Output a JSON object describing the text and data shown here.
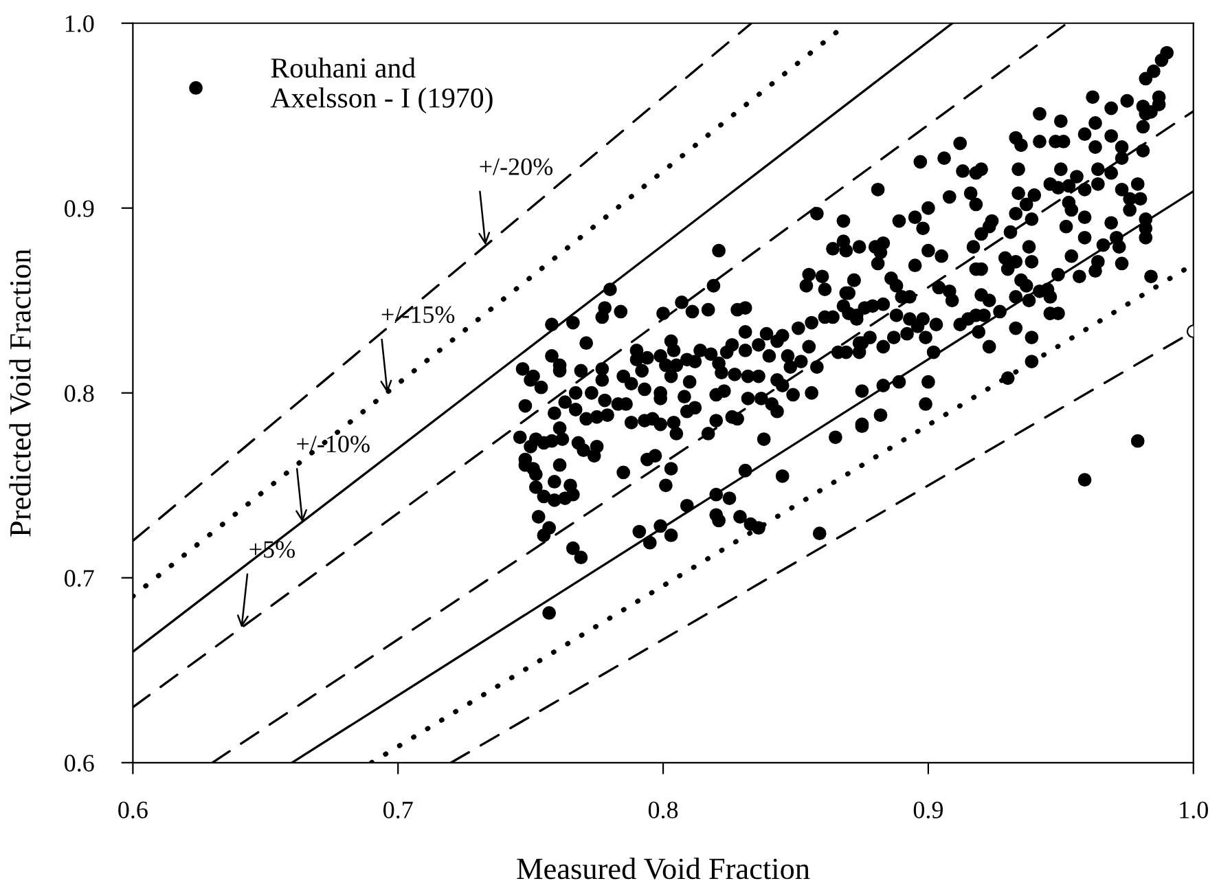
{
  "chart_data": {
    "type": "scatter",
    "xlabel": "Measured Void Fraction",
    "ylabel": "Predicted Void Fraction",
    "xlim": [
      0.6,
      1.0
    ],
    "ylim": [
      0.6,
      1.0
    ],
    "xticks": [
      0.6,
      0.7,
      0.8,
      0.9,
      {
        "value": 1.0,
        "label": "1.0"
      }
    ],
    "yticks": [
      0.6,
      0.7,
      0.8,
      0.9,
      {
        "value": 1.0,
        "label": "1.0"
      }
    ],
    "grid": false,
    "legend": "top left",
    "marker": "circle",
    "annotations": [
      {
        "text": "+/-20%",
        "x": 0.733,
        "y": 0.88
      },
      {
        "text": "+/-15%",
        "x": 0.696,
        "y": 0.8
      },
      {
        "text": "+/-10%",
        "x": 0.664,
        "y": 0.73
      },
      {
        "text": "+5%",
        "x": 0.641,
        "y": 0.673
      }
    ],
    "series": [
      {
        "type": "line",
        "color": "#000000",
        "line_style": "dashed",
        "marker": "none",
        "x": [
          0.6,
          0.8333
        ],
        "values": [
          0.72,
          1.0
        ]
      },
      {
        "type": "line",
        "color": "#000000",
        "line_style": "dotted",
        "marker": "none",
        "x": [
          0.6,
          0.8696
        ],
        "values": [
          0.69,
          1.0
        ]
      },
      {
        "type": "line",
        "color": "#000000",
        "line_style": "solid",
        "marker": "none",
        "x": [
          0.6,
          0.9091
        ],
        "values": [
          0.66,
          1.0
        ]
      },
      {
        "type": "line",
        "color": "#000000",
        "line_style": "dashed",
        "marker": "none",
        "x": [
          0.6,
          0.9524
        ],
        "values": [
          0.63,
          1.0
        ]
      },
      {
        "type": "line",
        "color": "#000000",
        "line_style": "dashed",
        "marker": "none",
        "x": [
          0.63,
          1.0
        ],
        "values": [
          0.6,
          0.9524
        ]
      },
      {
        "type": "line",
        "color": "#000000",
        "line_style": "solid",
        "marker": "none",
        "x": [
          0.66,
          1.0
        ],
        "values": [
          0.6,
          0.9091
        ]
      },
      {
        "type": "line",
        "color": "#000000",
        "line_style": "dotted",
        "marker": "none",
        "x": [
          0.69,
          1.0
        ],
        "values": [
          0.6,
          0.8696
        ]
      },
      {
        "type": "line",
        "color": "#000000",
        "line_style": "dashed",
        "marker": "none",
        "x": [
          0.72,
          1.0
        ],
        "values": [
          0.6,
          0.8333
        ]
      },
      {
        "color": "#ffffff",
        "x": [
          1.0
        ],
        "values": [
          0.8333
        ]
      },
      {
        "name": "Rouhani and\nAxelsson - I (1970)",
        "color": "#000000",
        "x": [
          0.821,
          0.78,
          0.778,
          0.777,
          0.784,
          0.758,
          0.766,
          0.771,
          0.758,
          0.761,
          0.761,
          0.751,
          0.754,
          0.769,
          0.777,
          0.777,
          0.785,
          0.79,
          0.79,
          0.794,
          0.792,
          0.793,
          0.788,
          0.799,
          0.801,
          0.805,
          0.803,
          0.803,
          0.804,
          0.799,
          0.799,
          0.8,
          0.807,
          0.811,
          0.817,
          0.819,
          0.828,
          0.831,
          0.809,
          0.812,
          0.81,
          0.814,
          0.808,
          0.809,
          0.812,
          0.818,
          0.821,
          0.822,
          0.824,
          0.826,
          0.827,
          0.82,
          0.823,
          0.831,
          0.831,
          0.836,
          0.839,
          0.843,
          0.845,
          0.851,
          0.856,
          0.861,
          0.864,
          0.832,
          0.836,
          0.832,
          0.837,
          0.84,
          0.847,
          0.848,
          0.852,
          0.855,
          0.858,
          0.843,
          0.845,
          0.849,
          0.856,
          0.841,
          0.843,
          0.838,
          0.831,
          0.845,
          0.82,
          0.825,
          0.801,
          0.803,
          0.794,
          0.797,
          0.785,
          0.817,
          0.82,
          0.826,
          0.828,
          0.804,
          0.805,
          0.788,
          0.793,
          0.796,
          0.799,
          0.767,
          0.771,
          0.775,
          0.779,
          0.783,
          0.786,
          0.763,
          0.767,
          0.773,
          0.778,
          0.759,
          0.761,
          0.762,
          0.758,
          0.752,
          0.75,
          0.755,
          0.768,
          0.77,
          0.775,
          0.774,
          0.761,
          0.751,
          0.752,
          0.759,
          0.765,
          0.755,
          0.759,
          0.763,
          0.766,
          0.865,
          0.875,
          0.875,
          0.875,
          0.87,
          0.873,
          0.869,
          0.861,
          0.86,
          0.855,
          0.854,
          0.872,
          0.864,
          0.869,
          0.99,
          0.988,
          0.985,
          0.982,
          0.962,
          0.969,
          0.975,
          0.981,
          0.982,
          0.987,
          0.987,
          0.984,
          0.942,
          0.95,
          0.963,
          0.959,
          0.969,
          0.963,
          0.973,
          0.981,
          0.981,
          0.933,
          0.935,
          0.942,
          0.948,
          0.951,
          0.912,
          0.897,
          0.906,
          0.913,
          0.918,
          0.92,
          0.934,
          0.95,
          0.956,
          0.964,
          0.969,
          0.973,
          0.881,
          0.908,
          0.916,
          0.934,
          0.94,
          0.937,
          0.946,
          0.949,
          0.953,
          0.959,
          0.964,
          0.973,
          0.979,
          0.976,
          0.98,
          0.976,
          0.953,
          0.954,
          0.959,
          0.9,
          0.895,
          0.889,
          0.898,
          0.868,
          0.918,
          0.924,
          0.923,
          0.92,
          0.933,
          0.931,
          0.939,
          0.952,
          0.959,
          0.969,
          0.971,
          0.982,
          0.982,
          0.982,
          0.868,
          0.874,
          0.88,
          0.883,
          0.882,
          0.881,
          0.895,
          0.9,
          0.905,
          0.917,
          0.918,
          0.92,
          0.929,
          0.93,
          0.933,
          0.938,
          0.939,
          0.935,
          0.937,
          0.949,
          0.954,
          0.957,
          0.963,
          0.964,
          0.966,
          0.972,
          0.973,
          0.984,
          0.872,
          0.87,
          0.868,
          0.873,
          0.876,
          0.879,
          0.883,
          0.886,
          0.888,
          0.89,
          0.893,
          0.888,
          0.893,
          0.896,
          0.898,
          0.899,
          0.903,
          0.902,
          0.866,
          0.869,
          0.874,
          0.874,
          0.878,
          0.883,
          0.887,
          0.892,
          0.904,
          0.908,
          0.909,
          0.912,
          0.915,
          0.918,
          0.921,
          0.92,
          0.923,
          0.927,
          0.933,
          0.938,
          0.942,
          0.945,
          0.946,
          0.946,
          0.949,
          0.933,
          0.939,
          0.923,
          0.919,
          0.883,
          0.889,
          0.9,
          0.899,
          0.939,
          0.93,
          0.882,
          0.875,
          0.959,
          0.979,
          0.757,
          0.755,
          0.766,
          0.769,
          0.809,
          0.82,
          0.821,
          0.829,
          0.833,
          0.836,
          0.791,
          0.795,
          0.799,
          0.803,
          0.757,
          0.859,
          0.747,
          0.748,
          0.746,
          0.748,
          0.748,
          0.75,
          0.752,
          0.753,
          0.858
        ],
        "values": [
          0.877,
          0.856,
          0.846,
          0.841,
          0.844,
          0.837,
          0.838,
          0.827,
          0.82,
          0.815,
          0.812,
          0.809,
          0.803,
          0.812,
          0.813,
          0.807,
          0.809,
          0.823,
          0.818,
          0.819,
          0.812,
          0.802,
          0.805,
          0.82,
          0.815,
          0.815,
          0.809,
          0.828,
          0.823,
          0.8,
          0.797,
          0.843,
          0.849,
          0.844,
          0.845,
          0.858,
          0.845,
          0.846,
          0.818,
          0.817,
          0.806,
          0.823,
          0.798,
          0.79,
          0.792,
          0.821,
          0.816,
          0.811,
          0.822,
          0.826,
          0.81,
          0.799,
          0.801,
          0.833,
          0.823,
          0.826,
          0.832,
          0.828,
          0.831,
          0.835,
          0.838,
          0.841,
          0.841,
          0.809,
          0.809,
          0.797,
          0.797,
          0.82,
          0.82,
          0.814,
          0.817,
          0.825,
          0.814,
          0.807,
          0.804,
          0.799,
          0.8,
          0.794,
          0.79,
          0.775,
          0.758,
          0.755,
          0.745,
          0.743,
          0.75,
          0.759,
          0.764,
          0.766,
          0.757,
          0.778,
          0.785,
          0.787,
          0.786,
          0.784,
          0.778,
          0.784,
          0.785,
          0.786,
          0.783,
          0.791,
          0.786,
          0.787,
          0.788,
          0.794,
          0.794,
          0.795,
          0.8,
          0.8,
          0.796,
          0.789,
          0.781,
          0.775,
          0.774,
          0.775,
          0.771,
          0.773,
          0.773,
          0.769,
          0.771,
          0.766,
          0.761,
          0.759,
          0.756,
          0.752,
          0.75,
          0.744,
          0.742,
          0.743,
          0.745,
          0.776,
          0.783,
          0.801,
          0.827,
          0.843,
          0.84,
          0.854,
          0.856,
          0.863,
          0.864,
          0.858,
          0.861,
          0.878,
          0.877,
          0.984,
          0.98,
          0.974,
          0.97,
          0.96,
          0.954,
          0.958,
          0.955,
          0.951,
          0.96,
          0.956,
          0.952,
          0.951,
          0.947,
          0.946,
          0.94,
          0.939,
          0.933,
          0.933,
          0.944,
          0.931,
          0.938,
          0.934,
          0.936,
          0.936,
          0.936,
          0.935,
          0.925,
          0.927,
          0.92,
          0.919,
          0.921,
          0.921,
          0.921,
          0.917,
          0.921,
          0.919,
          0.927,
          0.91,
          0.906,
          0.908,
          0.908,
          0.907,
          0.902,
          0.913,
          0.911,
          0.912,
          0.91,
          0.913,
          0.91,
          0.913,
          0.905,
          0.905,
          0.899,
          0.903,
          0.899,
          0.895,
          0.9,
          0.895,
          0.893,
          0.889,
          0.893,
          0.902,
          0.893,
          0.89,
          0.886,
          0.897,
          0.887,
          0.894,
          0.89,
          0.884,
          0.892,
          0.884,
          0.894,
          0.889,
          0.884,
          0.882,
          0.879,
          0.879,
          0.881,
          0.876,
          0.87,
          0.869,
          0.877,
          0.874,
          0.879,
          0.867,
          0.867,
          0.873,
          0.867,
          0.871,
          0.879,
          0.871,
          0.861,
          0.858,
          0.864,
          0.874,
          0.863,
          0.866,
          0.871,
          0.88,
          0.879,
          0.87,
          0.863,
          0.861,
          0.854,
          0.847,
          0.842,
          0.846,
          0.847,
          0.848,
          0.862,
          0.858,
          0.852,
          0.852,
          0.842,
          0.84,
          0.836,
          0.84,
          0.83,
          0.837,
          0.822,
          0.822,
          0.822,
          0.822,
          0.827,
          0.83,
          0.825,
          0.83,
          0.832,
          0.857,
          0.855,
          0.85,
          0.837,
          0.84,
          0.842,
          0.842,
          0.853,
          0.85,
          0.844,
          0.852,
          0.85,
          0.855,
          0.856,
          0.852,
          0.843,
          0.843,
          0.835,
          0.83,
          0.825,
          0.833,
          0.804,
          0.806,
          0.806,
          0.794,
          0.817,
          0.808,
          0.788,
          0.782,
          0.753,
          0.774,
          0.727,
          0.723,
          0.716,
          0.711,
          0.739,
          0.734,
          0.731,
          0.733,
          0.729,
          0.727,
          0.725,
          0.719,
          0.728,
          0.723,
          0.681,
          0.724,
          0.813,
          0.793,
          0.776,
          0.764,
          0.761,
          0.807,
          0.749,
          0.733,
          0.897
        ]
      }
    ]
  }
}
